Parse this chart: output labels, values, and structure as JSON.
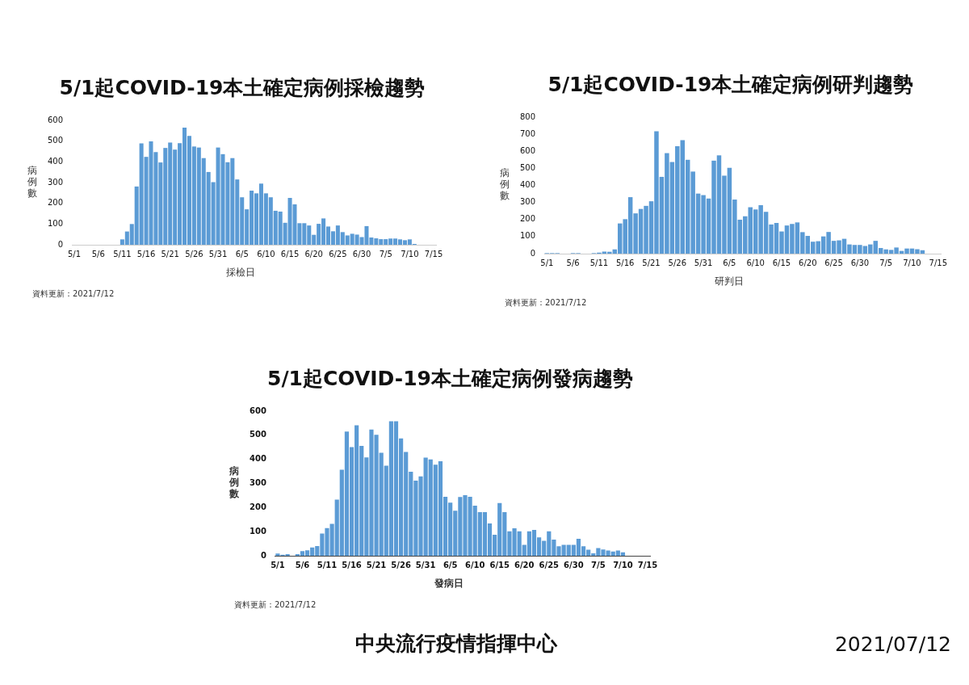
{
  "chart_data": [
    {
      "type": "bar",
      "title": "5/1起COVID-19本土確定病例採檢趨勢",
      "xlabel": "採檢日",
      "ylabel": "病例數",
      "color": "#5b9bd5",
      "categories": [
        "5/1",
        null,
        null,
        null,
        null,
        "5/6",
        null,
        null,
        null,
        null,
        "5/11",
        null,
        null,
        null,
        null,
        "5/16",
        null,
        null,
        null,
        null,
        "5/21",
        null,
        null,
        null,
        null,
        "5/26",
        null,
        null,
        null,
        null,
        "5/31",
        null,
        null,
        null,
        null,
        "6/5",
        null,
        null,
        null,
        null,
        "6/10",
        null,
        null,
        null,
        null,
        "6/15",
        null,
        null,
        null,
        null,
        "6/20",
        null,
        null,
        null,
        null,
        "6/25",
        null,
        null,
        null,
        null,
        "6/30",
        null,
        null,
        null,
        null,
        "7/5",
        null,
        null,
        null,
        null,
        "7/10",
        null,
        null,
        null,
        null,
        "7/15"
      ],
      "values": [
        0,
        0,
        0,
        0,
        0,
        0,
        0,
        0,
        0,
        0,
        26,
        64,
        100,
        281,
        489,
        424,
        499,
        447,
        397,
        467,
        493,
        459,
        490,
        565,
        525,
        474,
        469,
        418,
        351,
        302,
        469,
        437,
        398,
        418,
        315,
        229,
        171,
        261,
        248,
        295,
        248,
        229,
        164,
        160,
        106,
        226,
        195,
        104,
        104,
        93,
        48,
        101,
        127,
        88,
        65,
        93,
        61,
        45,
        53,
        49,
        37,
        90,
        35,
        31,
        27,
        27,
        30,
        30,
        26,
        22,
        26,
        4,
        null,
        null,
        null,
        null
      ],
      "ylim": [
        0,
        600
      ],
      "yticks": [
        0,
        100,
        200,
        300,
        400,
        500,
        600
      ],
      "annotations": [
        "資料更新：2021/7/12"
      ]
    },
    {
      "type": "bar",
      "title": "5/1起COVID-19本土確定病例研判趨勢",
      "xlabel": "研判日",
      "ylabel": "病例數",
      "color": "#5b9bd5",
      "categories": [
        "5/1",
        null,
        null,
        null,
        null,
        "5/6",
        null,
        null,
        null,
        null,
        "5/11",
        null,
        null,
        null,
        null,
        "5/16",
        null,
        null,
        null,
        null,
        "5/21",
        null,
        null,
        null,
        null,
        "5/26",
        null,
        null,
        null,
        null,
        "5/31",
        null,
        null,
        null,
        null,
        "6/5",
        null,
        null,
        null,
        null,
        "6/10",
        null,
        null,
        null,
        null,
        "6/15",
        null,
        null,
        null,
        null,
        "6/20",
        null,
        null,
        null,
        null,
        "6/25",
        null,
        null,
        null,
        null,
        "6/30",
        null,
        null,
        null,
        null,
        "7/5",
        null,
        null,
        null,
        null,
        "7/10",
        null,
        null,
        null,
        null,
        "7/15"
      ],
      "values": [
        3,
        3,
        3,
        0,
        0,
        3,
        3,
        0,
        0,
        3,
        6,
        12,
        11,
        25,
        177,
        202,
        331,
        236,
        262,
        280,
        307,
        717,
        450,
        589,
        537,
        629,
        665,
        550,
        481,
        352,
        343,
        323,
        545,
        576,
        457,
        503,
        317,
        199,
        219,
        272,
        259,
        284,
        245,
        171,
        180,
        130,
        165,
        174,
        183,
        126,
        104,
        70,
        73,
        101,
        127,
        75,
        78,
        87,
        54,
        51,
        51,
        45,
        54,
        75,
        33,
        25,
        22,
        36,
        16,
        30,
        30,
        26,
        20,
        null,
        null,
        null
      ],
      "ylim": [
        0,
        800
      ],
      "yticks": [
        0,
        100,
        200,
        300,
        400,
        500,
        600,
        700,
        800
      ],
      "annotations": [
        "資料更新：2021/7/12"
      ]
    },
    {
      "type": "bar",
      "title": "5/1起COVID-19本土確定病例發病趨勢",
      "xlabel": "發病日",
      "ylabel": "病例數",
      "color": "#5b9bd5",
      "categories": [
        "5/1",
        null,
        null,
        null,
        null,
        "5/6",
        null,
        null,
        null,
        null,
        "5/11",
        null,
        null,
        null,
        null,
        "5/16",
        null,
        null,
        null,
        null,
        "5/21",
        null,
        null,
        null,
        null,
        "5/26",
        null,
        null,
        null,
        null,
        "5/31",
        null,
        null,
        null,
        null,
        "6/5",
        null,
        null,
        null,
        null,
        "6/10",
        null,
        null,
        null,
        null,
        "6/15",
        null,
        null,
        null,
        null,
        "6/20",
        null,
        null,
        null,
        null,
        "6/25",
        null,
        null,
        null,
        null,
        "6/30",
        null,
        null,
        null,
        null,
        "7/5",
        null,
        null,
        null,
        null,
        "7/10",
        null,
        null,
        null,
        null,
        "7/15"
      ],
      "values": [
        9,
        4,
        7,
        0,
        7,
        19,
        23,
        34,
        40,
        92,
        115,
        132,
        233,
        357,
        515,
        451,
        541,
        456,
        408,
        524,
        502,
        427,
        374,
        558,
        558,
        487,
        431,
        349,
        312,
        329,
        407,
        400,
        378,
        392,
        245,
        220,
        187,
        244,
        251,
        245,
        208,
        181,
        181,
        134,
        87,
        219,
        181,
        101,
        114,
        101,
        45,
        101,
        107,
        76,
        62,
        101,
        67,
        39,
        45,
        45,
        45,
        70,
        39,
        25,
        10,
        32,
        26,
        22,
        18,
        22,
        14,
        null,
        null,
        null,
        null,
        null
      ],
      "ylim": [
        0,
        600
      ],
      "yticks": [
        0,
        100,
        200,
        300,
        400,
        500,
        600
      ],
      "annotations": [
        "資料更新：2021/7/12"
      ]
    },
    {
      "type": "other",
      "annotations": [
        "中央流行疫情指揮中心",
        "2021/07/12"
      ]
    }
  ]
}
